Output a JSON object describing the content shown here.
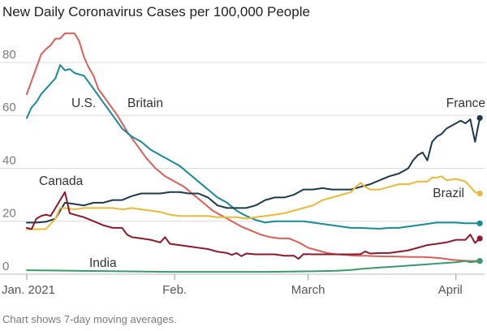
{
  "chart_data": {
    "type": "line",
    "title": "New Daily Coronavirus Cases per 100,000 People",
    "note": "Chart shows 7-day moving averages.",
    "xlabel": "",
    "ylabel": "",
    "x_unit": "day of 2021 (Jan. 1 = 0)",
    "xlim": [
      0,
      96
    ],
    "ylim": [
      0,
      95
    ],
    "y_ticks": [
      0,
      20,
      40,
      60,
      80
    ],
    "x_ticks": [
      {
        "label": "Jan. 2021",
        "x": 0
      },
      {
        "label": "Feb.",
        "x": 31
      },
      {
        "label": "March",
        "x": 59
      },
      {
        "label": "April",
        "x": 90
      }
    ],
    "grid": true,
    "legend": "direct labels",
    "series": [
      {
        "name": "Britain",
        "color": "#d9605a",
        "points": [
          [
            0,
            68
          ],
          [
            1,
            73
          ],
          [
            2,
            78
          ],
          [
            3,
            83
          ],
          [
            4,
            85
          ],
          [
            5,
            86.5
          ],
          [
            6,
            89
          ],
          [
            7,
            89
          ],
          [
            8,
            91
          ],
          [
            9,
            91
          ],
          [
            10,
            91
          ],
          [
            11,
            88
          ],
          [
            12,
            82
          ],
          [
            13,
            78
          ],
          [
            14,
            75
          ],
          [
            15,
            70
          ],
          [
            17,
            65
          ],
          [
            19,
            60
          ],
          [
            21,
            54
          ],
          [
            23,
            49
          ],
          [
            25,
            44
          ],
          [
            27,
            40
          ],
          [
            29,
            37
          ],
          [
            31,
            35
          ],
          [
            33,
            33
          ],
          [
            35,
            30
          ],
          [
            37,
            27
          ],
          [
            39,
            24
          ],
          [
            41,
            22
          ],
          [
            43,
            20
          ],
          [
            45,
            18
          ],
          [
            47,
            16.5
          ],
          [
            49,
            15
          ],
          [
            51,
            14
          ],
          [
            53,
            13.5
          ],
          [
            55,
            13.5
          ],
          [
            57,
            12
          ],
          [
            59,
            10
          ],
          [
            61,
            9
          ],
          [
            63,
            8
          ],
          [
            65,
            7.5
          ],
          [
            67,
            7.3
          ],
          [
            69,
            7
          ],
          [
            71,
            7
          ],
          [
            73,
            6.8
          ],
          [
            75,
            6.7
          ],
          [
            77,
            6.7
          ],
          [
            79,
            6.6
          ],
          [
            81,
            6.5
          ],
          [
            83,
            6.5
          ],
          [
            85,
            6.3
          ],
          [
            87,
            6
          ],
          [
            89,
            5.5
          ],
          [
            91,
            5.2
          ],
          [
            93,
            5
          ],
          [
            95,
            5
          ]
        ]
      },
      {
        "name": "U.S.",
        "color": "#1a8a96",
        "points": [
          [
            0,
            59
          ],
          [
            1,
            63
          ],
          [
            2,
            65
          ],
          [
            3,
            68
          ],
          [
            4,
            70
          ],
          [
            6,
            74
          ],
          [
            7,
            79
          ],
          [
            8,
            77
          ],
          [
            9,
            77.5
          ],
          [
            10,
            76
          ],
          [
            12,
            75
          ],
          [
            14,
            70
          ],
          [
            16,
            65
          ],
          [
            18,
            60
          ],
          [
            20,
            55
          ],
          [
            22,
            52
          ],
          [
            24,
            50
          ],
          [
            26,
            47
          ],
          [
            28,
            45
          ],
          [
            30,
            43
          ],
          [
            32,
            41
          ],
          [
            34,
            38
          ],
          [
            36,
            35
          ],
          [
            38,
            32
          ],
          [
            40,
            29
          ],
          [
            42,
            27
          ],
          [
            44,
            24
          ],
          [
            46,
            22
          ],
          [
            48,
            20.5
          ],
          [
            50,
            19.5
          ],
          [
            52,
            20
          ],
          [
            54,
            20
          ],
          [
            56,
            20
          ],
          [
            58,
            20
          ],
          [
            60,
            19.5
          ],
          [
            62,
            19
          ],
          [
            64,
            18.5
          ],
          [
            66,
            18
          ],
          [
            68,
            17.5
          ],
          [
            70,
            17.5
          ],
          [
            72,
            17.3
          ],
          [
            74,
            17.2
          ],
          [
            76,
            17.5
          ],
          [
            78,
            17.5
          ],
          [
            80,
            18
          ],
          [
            82,
            18.5
          ],
          [
            84,
            19
          ],
          [
            86,
            19.5
          ],
          [
            88,
            19.5
          ],
          [
            90,
            19.5
          ],
          [
            92,
            19.2
          ],
          [
            94,
            19.2
          ],
          [
            95,
            19.2
          ]
        ]
      },
      {
        "name": "France",
        "color": "#1e3a4a",
        "points": [
          [
            0,
            19.5
          ],
          [
            2,
            19.5
          ],
          [
            4,
            19.8
          ],
          [
            6,
            21
          ],
          [
            7,
            24
          ],
          [
            8,
            27
          ],
          [
            10,
            26.5
          ],
          [
            12,
            26
          ],
          [
            14,
            27
          ],
          [
            16,
            27
          ],
          [
            18,
            28
          ],
          [
            20,
            28
          ],
          [
            22,
            29.5
          ],
          [
            24,
            30.5
          ],
          [
            26,
            30.5
          ],
          [
            28,
            30.5
          ],
          [
            30,
            31
          ],
          [
            32,
            31
          ],
          [
            34,
            30.5
          ],
          [
            36,
            30.5
          ],
          [
            38,
            29
          ],
          [
            40,
            26
          ],
          [
            42,
            25
          ],
          [
            44,
            25
          ],
          [
            46,
            25
          ],
          [
            48,
            26
          ],
          [
            50,
            28
          ],
          [
            52,
            29
          ],
          [
            54,
            29
          ],
          [
            56,
            30
          ],
          [
            58,
            32
          ],
          [
            60,
            32
          ],
          [
            62,
            32.5
          ],
          [
            64,
            32
          ],
          [
            66,
            32
          ],
          [
            68,
            32
          ],
          [
            70,
            33
          ],
          [
            72,
            34
          ],
          [
            74,
            35.5
          ],
          [
            76,
            37
          ],
          [
            78,
            38
          ],
          [
            80,
            40
          ],
          [
            81,
            43
          ],
          [
            82,
            45
          ],
          [
            83,
            46
          ],
          [
            84,
            43
          ],
          [
            85,
            50
          ],
          [
            86,
            52
          ],
          [
            87,
            53
          ],
          [
            88,
            55
          ],
          [
            89,
            56
          ],
          [
            90,
            57
          ],
          [
            91,
            58
          ],
          [
            92,
            57
          ],
          [
            93,
            58.5
          ],
          [
            94,
            50
          ],
          [
            95,
            59
          ]
        ]
      },
      {
        "name": "Brazil",
        "color": "#e8b93a",
        "points": [
          [
            0,
            17
          ],
          [
            2,
            17
          ],
          [
            4,
            17
          ],
          [
            6,
            21
          ],
          [
            7,
            25
          ],
          [
            8,
            25
          ],
          [
            10,
            24.5
          ],
          [
            12,
            25
          ],
          [
            14,
            25
          ],
          [
            16,
            25
          ],
          [
            18,
            25
          ],
          [
            20,
            24.5
          ],
          [
            22,
            25
          ],
          [
            24,
            24.5
          ],
          [
            26,
            24
          ],
          [
            28,
            23.5
          ],
          [
            30,
            22.5
          ],
          [
            32,
            22
          ],
          [
            34,
            22
          ],
          [
            36,
            22
          ],
          [
            38,
            22
          ],
          [
            40,
            21.5
          ],
          [
            42,
            21.5
          ],
          [
            44,
            21.5
          ],
          [
            46,
            21
          ],
          [
            48,
            21.5
          ],
          [
            50,
            22
          ],
          [
            52,
            22.5
          ],
          [
            54,
            23
          ],
          [
            56,
            24
          ],
          [
            58,
            25
          ],
          [
            60,
            26
          ],
          [
            62,
            28
          ],
          [
            64,
            29
          ],
          [
            66,
            30
          ],
          [
            68,
            31
          ],
          [
            69,
            33
          ],
          [
            70,
            34.5
          ],
          [
            71,
            33
          ],
          [
            72,
            32
          ],
          [
            74,
            32
          ],
          [
            76,
            33
          ],
          [
            78,
            34
          ],
          [
            80,
            34
          ],
          [
            82,
            35
          ],
          [
            84,
            35
          ],
          [
            85,
            36.5
          ],
          [
            86,
            36.5
          ],
          [
            87,
            37
          ],
          [
            88,
            35.5
          ],
          [
            90,
            36
          ],
          [
            92,
            35
          ],
          [
            93,
            33
          ],
          [
            94,
            31
          ],
          [
            95,
            30.5
          ]
        ]
      },
      {
        "name": "Canada",
        "color": "#8b1a2e",
        "points": [
          [
            0,
            17.5
          ],
          [
            1,
            17
          ],
          [
            2,
            21
          ],
          [
            3,
            22
          ],
          [
            4,
            22.5
          ],
          [
            5,
            22
          ],
          [
            6,
            25
          ],
          [
            7,
            28
          ],
          [
            8,
            31
          ],
          [
            9,
            23
          ],
          [
            10,
            22.5
          ],
          [
            12,
            21.5
          ],
          [
            14,
            20
          ],
          [
            16,
            18.5
          ],
          [
            18,
            17.5
          ],
          [
            20,
            17.5
          ],
          [
            21,
            15
          ],
          [
            22,
            14
          ],
          [
            24,
            13.5
          ],
          [
            26,
            13
          ],
          [
            28,
            12
          ],
          [
            29,
            14
          ],
          [
            30,
            11.5
          ],
          [
            32,
            11
          ],
          [
            34,
            10.5
          ],
          [
            36,
            10
          ],
          [
            38,
            9.5
          ],
          [
            40,
            8.5
          ],
          [
            42,
            8
          ],
          [
            43,
            7.3
          ],
          [
            44,
            8
          ],
          [
            45,
            6.8
          ],
          [
            46,
            7.8
          ],
          [
            48,
            7.5
          ],
          [
            50,
            7.5
          ],
          [
            52,
            7.5
          ],
          [
            54,
            7
          ],
          [
            56,
            7
          ],
          [
            57,
            5.8
          ],
          [
            58,
            7.6
          ],
          [
            60,
            7.5
          ],
          [
            62,
            7.5
          ],
          [
            64,
            7.5
          ],
          [
            66,
            7.5
          ],
          [
            68,
            7.5
          ],
          [
            70,
            7.6
          ],
          [
            71,
            8.6
          ],
          [
            72,
            7.8
          ],
          [
            74,
            8
          ],
          [
            76,
            8
          ],
          [
            78,
            8.5
          ],
          [
            80,
            9
          ],
          [
            82,
            10
          ],
          [
            84,
            11
          ],
          [
            86,
            11.5
          ],
          [
            88,
            12
          ],
          [
            90,
            13
          ],
          [
            92,
            13
          ],
          [
            93,
            15
          ],
          [
            94,
            11.8
          ],
          [
            95,
            13.5
          ]
        ]
      },
      {
        "name": "India",
        "color": "#3a9a6e",
        "points": [
          [
            0,
            1.5
          ],
          [
            5,
            1.4
          ],
          [
            10,
            1.3
          ],
          [
            15,
            1.2
          ],
          [
            20,
            1.1
          ],
          [
            25,
            1
          ],
          [
            30,
            0.9
          ],
          [
            35,
            0.9
          ],
          [
            40,
            0.9
          ],
          [
            45,
            0.9
          ],
          [
            50,
            0.9
          ],
          [
            55,
            1
          ],
          [
            60,
            1.1
          ],
          [
            65,
            1.3
          ],
          [
            68,
            1.6
          ],
          [
            70,
            2
          ],
          [
            74,
            2.5
          ],
          [
            78,
            3
          ],
          [
            82,
            3.5
          ],
          [
            86,
            4
          ],
          [
            90,
            4.5
          ],
          [
            92,
            5
          ],
          [
            93,
            4.5
          ],
          [
            95,
            5
          ]
        ]
      }
    ]
  }
}
